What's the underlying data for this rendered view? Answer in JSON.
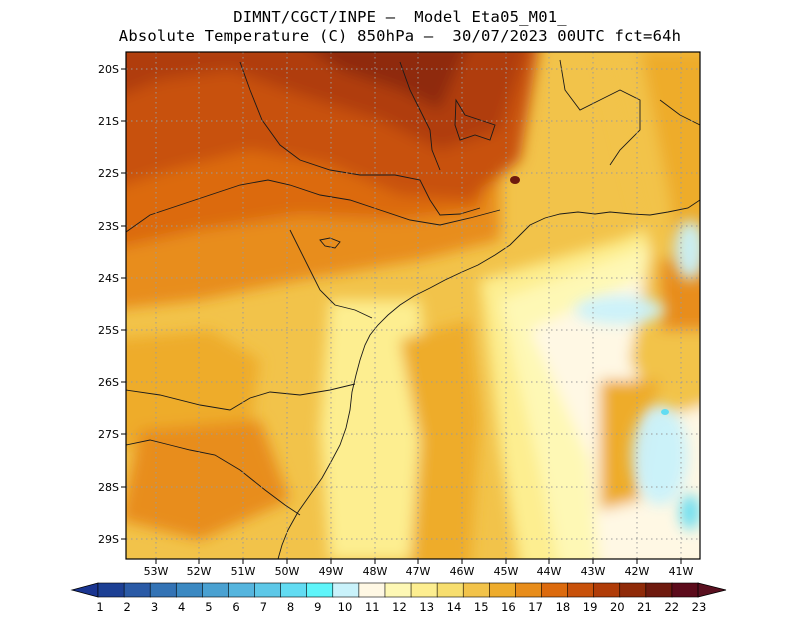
{
  "title": {
    "line1": "DIMNT/CGCT/INPE –  Model Eta05_M01_",
    "line2": "Absolute Temperature (C) 850hPa –  30/07/2023 00UTC fct=64h"
  },
  "map": {
    "lon_range": [
      -53.75,
      -40.6
    ],
    "lat_range": [
      -29.45,
      -19.75
    ],
    "lon_ticks": [
      "53W",
      "52W",
      "51W",
      "50W",
      "49W",
      "48W",
      "47W",
      "46W",
      "45W",
      "44W",
      "43W",
      "42W",
      "41W"
    ],
    "lat_ticks": [
      "20S",
      "21S",
      "22S",
      "23S",
      "24S",
      "25S",
      "26S",
      "27S",
      "28S",
      "29S"
    ],
    "field_description": "850hPa temperature over southeastern/southern Brazil and adjacent Atlantic"
  },
  "colorbar": {
    "labels": [
      "1",
      "2",
      "3",
      "4",
      "5",
      "6",
      "7",
      "8",
      "9",
      "10",
      "11",
      "12",
      "13",
      "14",
      "15",
      "16",
      "17",
      "18",
      "19",
      "20",
      "21",
      "22",
      "23"
    ],
    "colors": [
      "#1c3f94",
      "#2a5aa6",
      "#3373b5",
      "#3b89c2",
      "#4aa1d1",
      "#55b5de",
      "#5dc8e8",
      "#62dcf2",
      "#5ff5fa",
      "#c9f2fb",
      "#fff8e4",
      "#fef8b5",
      "#fdee90",
      "#f7de6e",
      "#f2c34a",
      "#eeac2c",
      "#e88d1b",
      "#dc6a0d",
      "#c8510a",
      "#b03c08",
      "#8f2a08",
      "#6e1a0e",
      "#5c0b1b"
    ],
    "left_arrow_color": "#1a3591",
    "right_arrow_color": "#5a1020"
  }
}
